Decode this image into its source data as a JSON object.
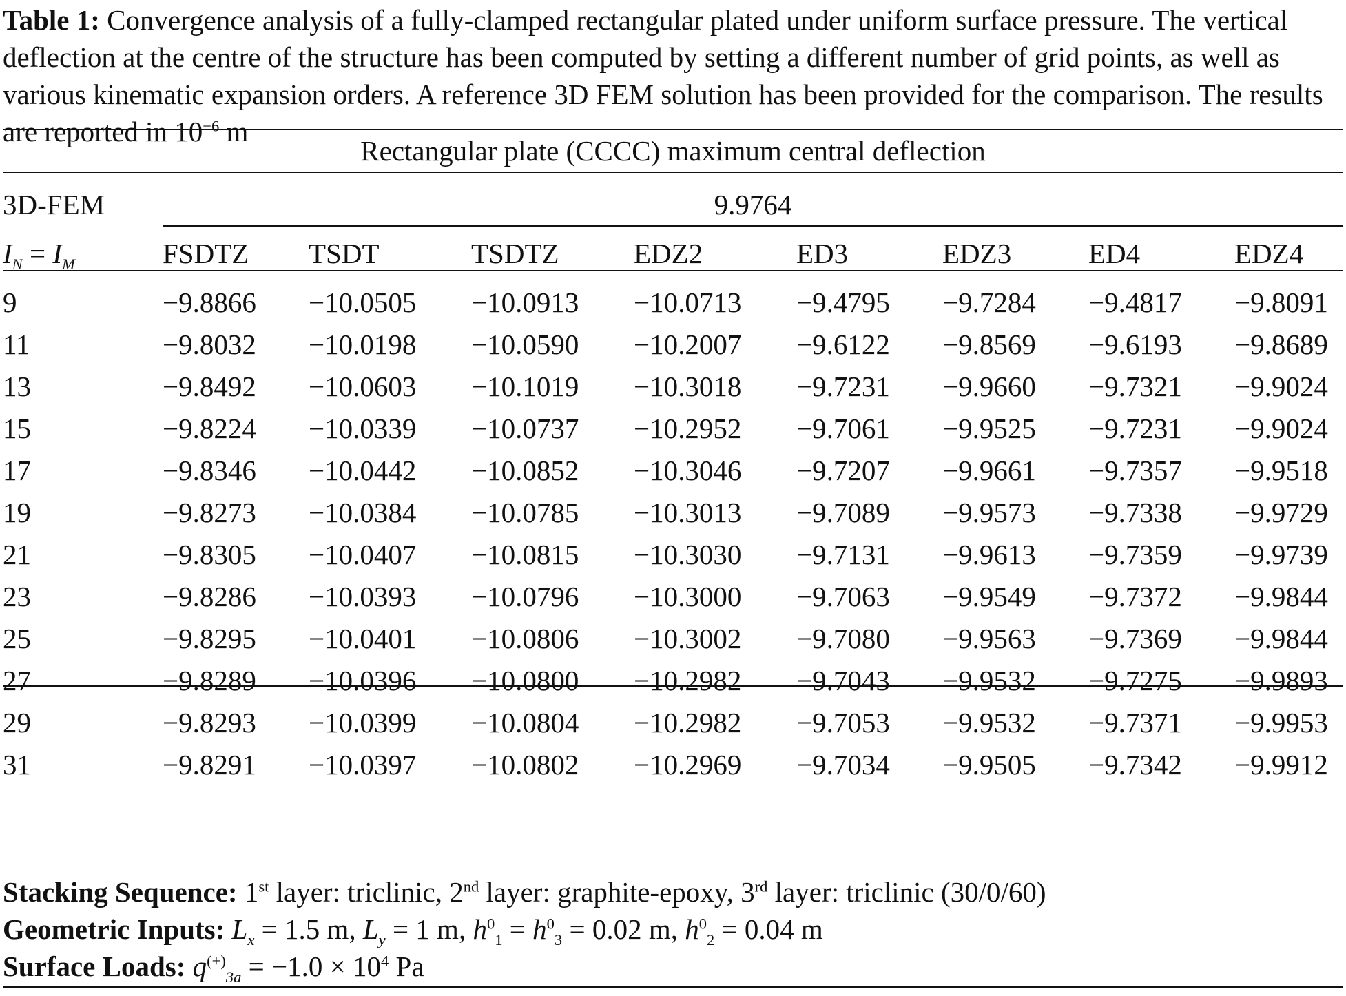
{
  "caption": {
    "label": "Table 1:",
    "text": " Convergence analysis of a fully-clamped rectangular plated under uniform surface pressure. The vertical deflection at the centre of the structure has been computed by setting a different number of grid points, as well as various kinematic expansion orders. A reference 3D FEM solution has been provided for the comparison. The results are reported in 10",
    "exponent": "−6",
    "unit": " m"
  },
  "table": {
    "span_title": "Rectangular plate (CCCC) maximum central deflection",
    "fem_label": "3D-FEM",
    "fem_value": "9.9764",
    "row_header": {
      "a": "I",
      "a_sub": "N",
      "eq": " = ",
      "b": "I",
      "b_sub": "M"
    },
    "columns": [
      "FSDTZ",
      "TSDT",
      "TSDTZ",
      "EDZ2",
      "ED3",
      "EDZ3",
      "ED4",
      "EDZ4"
    ],
    "rows": [
      [
        "9",
        "−9.8866",
        "−10.0505",
        "−10.0913",
        "−10.0713",
        "−9.4795",
        "−9.7284",
        "−9.4817",
        "−9.8091"
      ],
      [
        "11",
        "−9.8032",
        "−10.0198",
        "−10.0590",
        "−10.2007",
        "−9.6122",
        "−9.8569",
        "−9.6193",
        "−9.8689"
      ],
      [
        "13",
        "−9.8492",
        "−10.0603",
        "−10.1019",
        "−10.3018",
        "−9.7231",
        "−9.9660",
        "−9.7321",
        "−9.9024"
      ],
      [
        "15",
        "−9.8224",
        "−10.0339",
        "−10.0737",
        "−10.2952",
        "−9.7061",
        "−9.9525",
        "−9.7231",
        "−9.9024"
      ],
      [
        "17",
        "−9.8346",
        "−10.0442",
        "−10.0852",
        "−10.3046",
        "−9.7207",
        "−9.9661",
        "−9.7357",
        "−9.9518"
      ],
      [
        "19",
        "−9.8273",
        "−10.0384",
        "−10.0785",
        "−10.3013",
        "−9.7089",
        "−9.9573",
        "−9.7338",
        "−9.9729"
      ],
      [
        "21",
        "−9.8305",
        "−10.0407",
        "−10.0815",
        "−10.3030",
        "−9.7131",
        "−9.9613",
        "−9.7359",
        "−9.9739"
      ],
      [
        "23",
        "−9.8286",
        "−10.0393",
        "−10.0796",
        "−10.3000",
        "−9.7063",
        "−9.9549",
        "−9.7372",
        "−9.9844"
      ],
      [
        "25",
        "−9.8295",
        "−10.0401",
        "−10.0806",
        "−10.3002",
        "−9.7080",
        "−9.9563",
        "−9.7369",
        "−9.9844"
      ],
      [
        "27",
        "−9.8289",
        "−10.0396",
        "−10.0800",
        "−10.2982",
        "−9.7043",
        "−9.9532",
        "−9.7275",
        "−9.9893"
      ],
      [
        "29",
        "−9.8293",
        "−10.0399",
        "−10.0804",
        "−10.2982",
        "−9.7053",
        "−9.9532",
        "−9.7371",
        "−9.9953"
      ],
      [
        "31",
        "−9.8291",
        "−10.0397",
        "−10.0802",
        "−10.2969",
        "−9.7034",
        "−9.9505",
        "−9.7342",
        "−9.9912"
      ]
    ]
  },
  "notes": {
    "stacking": {
      "label": "Stacking Sequence:",
      "n1": " 1",
      "s1": "st",
      "t1": " layer: triclinic, 2",
      "s2": "nd",
      "t2": " layer: graphite-epoxy, 3",
      "s3": "rd",
      "t3": " layer: triclinic (30/0/60)"
    },
    "geometric": {
      "label": "Geometric Inputs:",
      "lx": "L",
      "lx_sub": "x",
      "lx_val": " = 1.5 m,  ",
      "ly": "L",
      "ly_sub": "y",
      "ly_val": " = 1 m, ",
      "h": "h",
      "h1_sup": "0",
      "h1_sub": "1",
      "eq1": " = ",
      "h3_sup": "0",
      "h3_sub": "3",
      "h13_val": " = 0.02 m,  ",
      "h2_sup": "0",
      "h2_sub": "2",
      "h2_val": " = 0.04 m"
    },
    "loads": {
      "label": "Surface Loads:",
      "q": " q",
      "q_sup": "(+)",
      "q_sub": "3a",
      "q_val": " = −1.0 × 10",
      "q_exp": "4",
      "q_unit": " Pa"
    }
  }
}
